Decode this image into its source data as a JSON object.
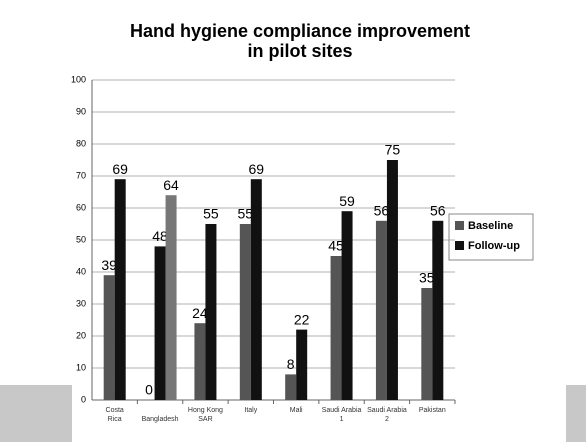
{
  "chart_data": {
    "type": "bar",
    "title": "Hand hygiene compliance improvement",
    "subtitle": "in pilot sites",
    "categories": [
      "Costa Rica",
      "Bangladesh",
      "Hong Kong SAR",
      "Italy",
      "Mali",
      "Saudi Arabia 1",
      "Saudi Arabia 2",
      "Pakistan"
    ],
    "series": [
      {
        "name": "Baseline",
        "color": "#555555",
        "values": [
          39,
          0,
          24,
          55,
          8,
          45,
          56,
          35
        ]
      },
      {
        "name": "Follow-up",
        "color": "#111111",
        "values": [
          69,
          48,
          55,
          69,
          22,
          59,
          75,
          56
        ]
      },
      {
        "name": null,
        "color": "#777777",
        "values": [
          null,
          64,
          null,
          null,
          null,
          null,
          null,
          null
        ]
      }
    ],
    "ylim": [
      0,
      100
    ],
    "yticks": [
      0,
      10,
      20,
      30,
      40,
      50,
      60,
      70,
      80,
      90,
      100
    ],
    "grid": true
  }
}
